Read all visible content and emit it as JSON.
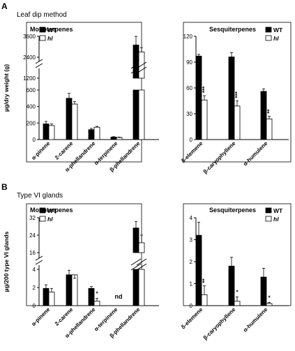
{
  "figure": {
    "panel_a_label": "A",
    "panel_a_method": "Leaf dip method",
    "panel_b_label": "B",
    "panel_b_method": "Type VI glands"
  },
  "chart_data": [
    {
      "id": "A-mono",
      "type": "bar",
      "title": "Monoterpenes",
      "ylabel": "µg/dry weight (g)",
      "categories": [
        "α-pinene",
        "2-carene",
        "α-phellandrene",
        "α-terpinene",
        "β-phellandrene"
      ],
      "series": [
        {
          "name": "WT",
          "color": "#000000",
          "values": [
            190,
            500,
            120,
            30,
            3100
          ],
          "errors": [
            30,
            60,
            15,
            5,
            500
          ]
        },
        {
          "name": "hl",
          "color": "#ffffff",
          "values": [
            170,
            430,
            150,
            25,
            2700
          ],
          "errors": [
            20,
            30,
            10,
            5,
            250
          ]
        }
      ],
      "y_axis": {
        "broken": true,
        "lower_range": [
          0,
          600
        ],
        "lower_ticks": [
          0,
          200,
          400,
          600
        ],
        "upper_range": [
          1200,
          3600
        ],
        "upper_ticks": [
          1200,
          2400,
          3600
        ]
      },
      "annotations": [],
      "legend": {
        "position": "top-left",
        "entries": [
          "WT",
          "hl"
        ]
      }
    },
    {
      "id": "A-sesq",
      "type": "bar",
      "title": "Sesquiterpenes",
      "ylabel": "",
      "categories": [
        "δ-elemene",
        "β-caryophyllene",
        "α-humulene"
      ],
      "series": [
        {
          "name": "WT",
          "color": "#000000",
          "values": [
            97,
            96,
            56
          ],
          "errors": [
            2,
            5,
            3
          ]
        },
        {
          "name": "hl",
          "color": "#ffffff",
          "values": [
            46,
            39,
            24
          ],
          "errors": [
            5,
            6,
            3
          ]
        }
      ],
      "y_axis": {
        "broken": false,
        "range": [
          0,
          120
        ],
        "ticks": [
          0,
          30,
          60,
          90,
          120
        ]
      },
      "annotations": [
        {
          "category": "δ-elemene",
          "series": "hl",
          "text": "***"
        },
        {
          "category": "β-caryophyllene",
          "series": "hl",
          "text": "***"
        },
        {
          "category": "α-humulene",
          "series": "hl",
          "text": "**"
        }
      ],
      "legend": {
        "position": "top-right",
        "entries": [
          "WT",
          "hl"
        ]
      }
    },
    {
      "id": "B-mono",
      "type": "bar",
      "title": "Monoterpenes",
      "ylabel": "µg/200 type VI glands",
      "categories": [
        "α-pinene",
        "2-carene",
        "α-phellandrene",
        "α-terpinene",
        "β-phellandrene"
      ],
      "series": [
        {
          "name": "WT",
          "color": "#000000",
          "values": [
            1.9,
            3.4,
            1.9,
            null,
            27.3
          ],
          "errors": [
            0.4,
            0.5,
            0.2,
            null,
            3
          ]
        },
        {
          "name": "hl",
          "color": "#ffffff",
          "values": [
            1.5,
            3.4,
            0.5,
            null,
            20.5
          ],
          "errors": [
            0.4,
            0.8,
            0.3,
            null,
            3.5
          ]
        }
      ],
      "y_axis": {
        "broken": true,
        "lower_range": [
          0,
          4
        ],
        "lower_ticks": [
          0,
          2,
          4
        ],
        "upper_range": [
          16,
          32
        ],
        "upper_ticks": [
          16,
          24,
          32
        ]
      },
      "annotations": [
        {
          "category": "α-phellandrene",
          "series": "hl",
          "text": "*"
        },
        {
          "category": "α-terpinene",
          "series": "both",
          "text": "nd"
        }
      ],
      "legend": {
        "position": "top-left",
        "entries": [
          "WT",
          "hl"
        ]
      }
    },
    {
      "id": "B-sesq",
      "type": "bar",
      "title": "Sesquiterpenes",
      "ylabel": "",
      "categories": [
        "δ-elemene",
        "β-caryophyllene",
        "α-humulene"
      ],
      "series": [
        {
          "name": "WT",
          "color": "#000000",
          "values": [
            3.2,
            1.8,
            1.3
          ],
          "errors": [
            0.6,
            0.4,
            0.4
          ]
        },
        {
          "name": "hl",
          "color": "#ffffff",
          "values": [
            0.5,
            0.2,
            0.1
          ],
          "errors": [
            0.4,
            0.2,
            0.05
          ]
        }
      ],
      "y_axis": {
        "broken": false,
        "range": [
          0,
          4
        ],
        "ticks": [
          0,
          1,
          2,
          3,
          4
        ]
      },
      "annotations": [
        {
          "category": "δ-elemene",
          "series": "hl",
          "text": "**"
        },
        {
          "category": "β-caryophyllene",
          "series": "hl",
          "text": "*"
        },
        {
          "category": "α-humulene",
          "series": "hl",
          "text": "*"
        }
      ],
      "legend": {
        "position": "top-right",
        "entries": [
          "WT",
          "hl"
        ]
      }
    }
  ]
}
